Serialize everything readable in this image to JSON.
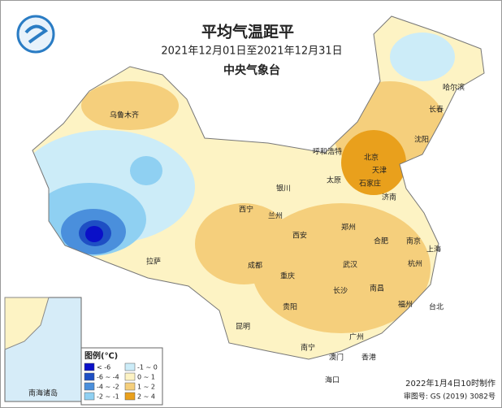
{
  "header": {
    "title": "平均气温距平",
    "period": "2021年12月01日至2021年12月31日",
    "agency": "中央气象台"
  },
  "legend": {
    "title": "图例(℃)",
    "items": [
      {
        "label": "< -6",
        "color": "#0a10c8"
      },
      {
        "label": "-6 ~ -4",
        "color": "#1e4fc4"
      },
      {
        "label": "-4 ~ -2",
        "color": "#4a8fdc"
      },
      {
        "label": "-2 ~ -1",
        "color": "#8fd0f2"
      },
      {
        "label": "-1 ~ 0",
        "color": "#ccecf8"
      },
      {
        "label": "0 ~ 1",
        "color": "#fdf3c4"
      },
      {
        "label": "1 ~ 2",
        "color": "#f5cf7c"
      },
      {
        "label": "2 ~ 4",
        "color": "#e9a01c"
      }
    ]
  },
  "cities": [
    "哈尔滨",
    "长春",
    "沈阳",
    "北京",
    "天津",
    "石家庄",
    "济南",
    "太原",
    "呼和浩特",
    "银川",
    "兰州",
    "西宁",
    "西安",
    "郑州",
    "合肥",
    "南京",
    "上海",
    "杭州",
    "武汉",
    "长沙",
    "南昌",
    "福州",
    "台北",
    "广州",
    "澳门",
    "香港",
    "南宁",
    "海口",
    "贵阳",
    "昆明",
    "成都",
    "重庆",
    "拉萨",
    "乌鲁木齐"
  ],
  "inset": {
    "label": "南海诸岛"
  },
  "footer": {
    "made": "2022年1月4日10时制作",
    "approval": "审图号: GS (2019) 3082号"
  }
}
